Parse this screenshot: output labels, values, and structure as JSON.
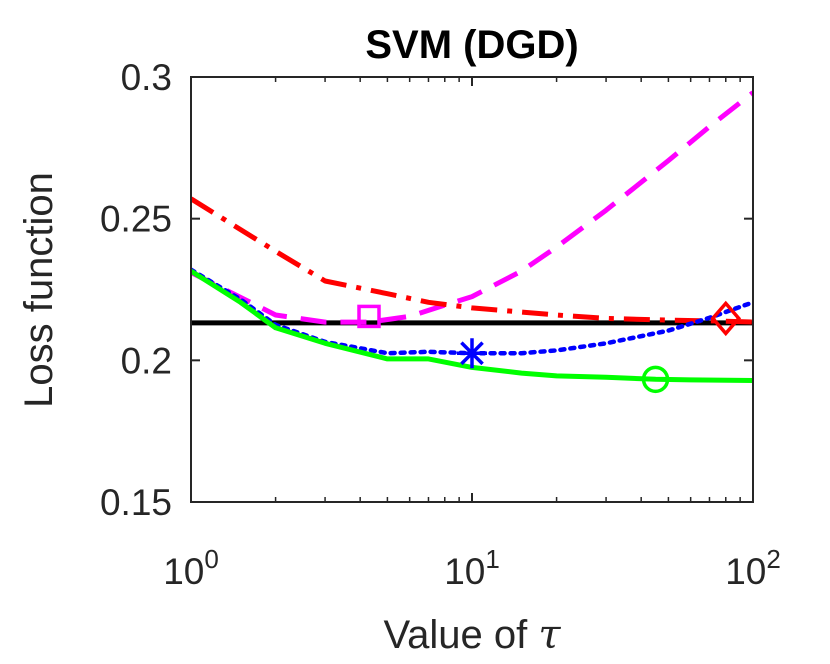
{
  "chart_data": {
    "type": "line",
    "title": "SVM (DGD)",
    "xlabel": "Value of",
    "xlabel_symbol": "τ",
    "ylabel": "Loss function",
    "xscale": "log",
    "xlim": [
      1,
      100
    ],
    "ylim": [
      0.15,
      0.3
    ],
    "grid": false,
    "x_ticks": [
      {
        "base": "10",
        "exp": "0",
        "value": 1
      },
      {
        "base": "10",
        "exp": "1",
        "value": 10
      },
      {
        "base": "10",
        "exp": "2",
        "value": 100
      }
    ],
    "y_ticks": [
      {
        "label": "0.15",
        "value": 0.15
      },
      {
        "label": "0.2",
        "value": 0.2
      },
      {
        "label": "0.25",
        "value": 0.25
      },
      {
        "label": "0.3",
        "value": 0.3
      }
    ],
    "series": [
      {
        "color": "#ff00ff",
        "style": "dashed",
        "marker": "square",
        "x": [
          1,
          2,
          3,
          4.3,
          6,
          8,
          10,
          15,
          20,
          30,
          50,
          70,
          100
        ],
        "y": [
          0.231,
          0.216,
          0.2135,
          0.2135,
          0.2155,
          0.2195,
          0.2225,
          0.2315,
          0.24,
          0.253,
          0.2705,
          0.2825,
          0.2945
        ],
        "marker_at": {
          "x": 4.3,
          "y": 0.2155
        }
      },
      {
        "color": "#ff0000",
        "style": "dashdot",
        "marker": "diamond",
        "x": [
          1,
          2,
          3,
          5,
          7,
          10,
          20,
          30,
          50,
          80,
          100
        ],
        "y": [
          0.257,
          0.2385,
          0.228,
          0.2235,
          0.2205,
          0.2185,
          0.216,
          0.2148,
          0.2142,
          0.2138,
          0.2135
        ],
        "marker_at": {
          "x": 80,
          "y": 0.2148
        }
      },
      {
        "color": "#0000ff",
        "style": "dotted",
        "marker": "asterisk",
        "x": [
          1,
          1.5,
          2,
          3,
          5,
          7,
          10,
          15,
          20,
          30,
          50,
          70,
          100
        ],
        "y": [
          0.232,
          0.2215,
          0.2125,
          0.2065,
          0.2025,
          0.203,
          0.2025,
          0.2025,
          0.2035,
          0.206,
          0.2105,
          0.215,
          0.2205
        ],
        "marker_at": {
          "x": 10,
          "y": 0.2025
        }
      },
      {
        "color": "#00ff00",
        "style": "solid",
        "marker": "circle",
        "x": [
          1,
          1.5,
          2,
          3,
          5,
          7,
          10,
          15,
          20,
          30,
          45,
          60,
          100
        ],
        "y": [
          0.2315,
          0.2205,
          0.2115,
          0.206,
          0.2005,
          0.2005,
          0.1975,
          0.1955,
          0.1945,
          0.194,
          0.1933,
          0.1931,
          0.1929
        ],
        "marker_at": {
          "x": 45,
          "y": 0.1933
        }
      },
      {
        "color": "#000000",
        "style": "solid",
        "marker": "none",
        "x": [
          1,
          100
        ],
        "y": [
          0.2132,
          0.2132
        ]
      }
    ]
  }
}
